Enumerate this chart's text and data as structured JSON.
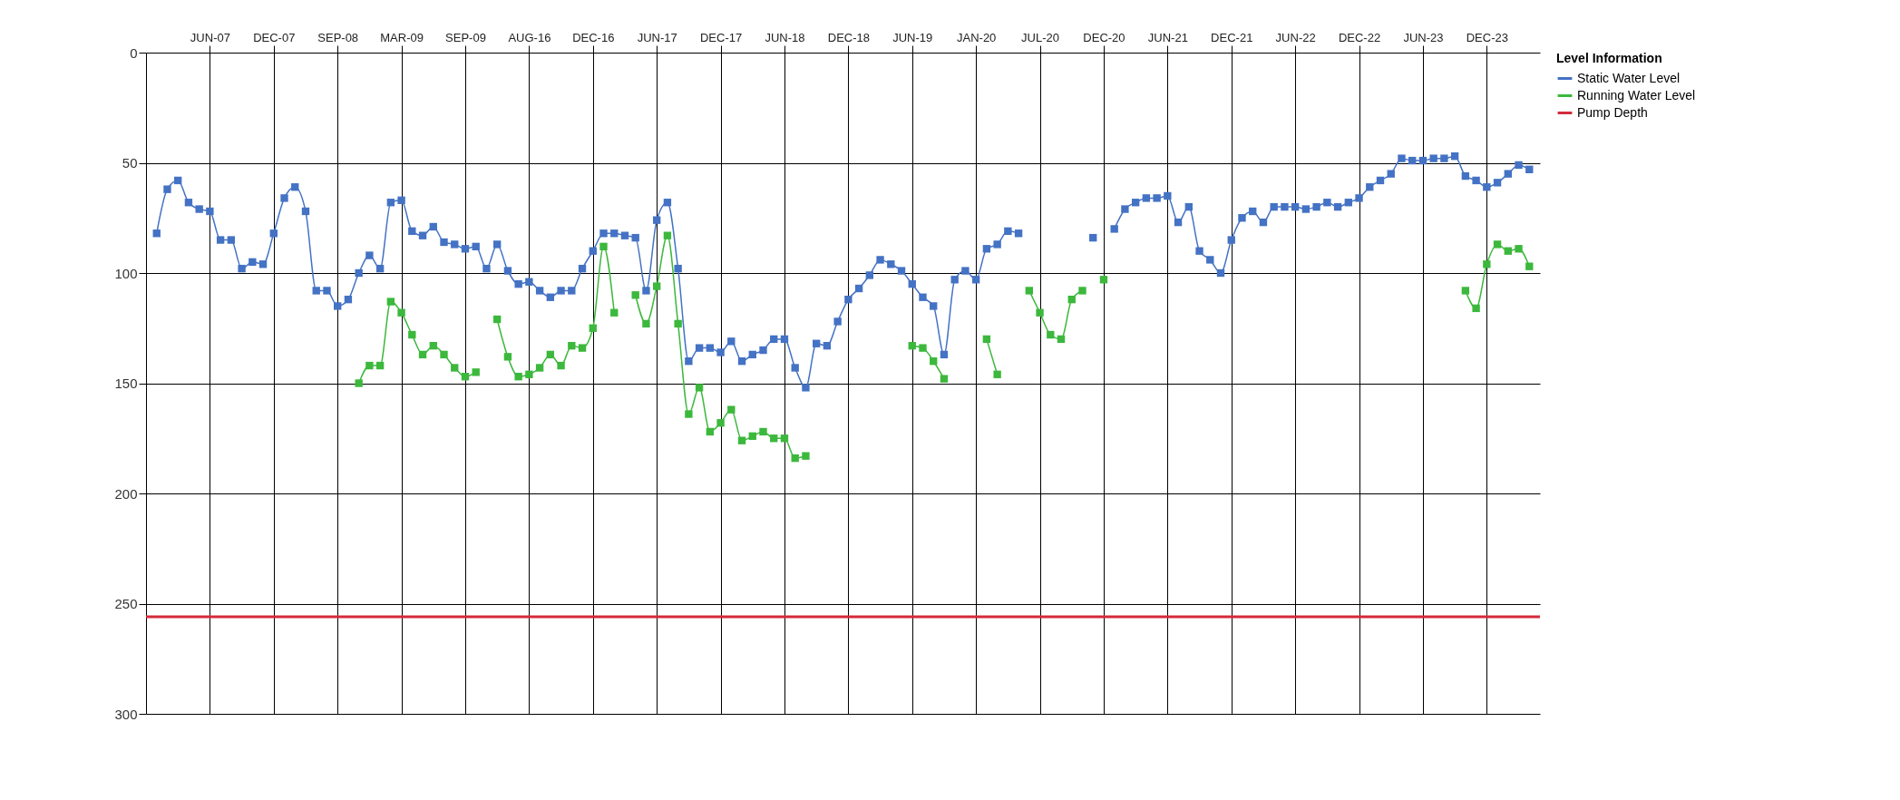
{
  "chart_data": {
    "type": "line",
    "legend_title": "Level Information",
    "categories": [
      null,
      null,
      null,
      null,
      null,
      "JUN-07",
      null,
      null,
      null,
      null,
      null,
      "DEC-07",
      null,
      null,
      null,
      null,
      null,
      "SEP-08",
      null,
      null,
      null,
      null,
      null,
      "MAR-09",
      null,
      null,
      null,
      null,
      null,
      "SEP-09",
      null,
      null,
      null,
      null,
      null,
      "AUG-16",
      null,
      null,
      null,
      null,
      null,
      "DEC-16",
      null,
      null,
      null,
      null,
      null,
      "JUN-17",
      null,
      null,
      null,
      null,
      null,
      "DEC-17",
      null,
      null,
      null,
      null,
      null,
      "JUN-18",
      null,
      null,
      null,
      null,
      null,
      "DEC-18",
      null,
      null,
      null,
      null,
      null,
      "JUN-19",
      null,
      null,
      null,
      null,
      null,
      "JAN-20",
      null,
      null,
      null,
      null,
      null,
      "JUL-20",
      null,
      null,
      null,
      null,
      null,
      "DEC-20",
      null,
      null,
      null,
      null,
      null,
      "JUN-21",
      null,
      null,
      null,
      null,
      null,
      "DEC-21",
      null,
      null,
      null,
      null,
      null,
      "JUN-22",
      null,
      null,
      null,
      null,
      null,
      "DEC-22",
      null,
      null,
      null,
      null,
      null,
      "JUN-23",
      null,
      null,
      null,
      null,
      null,
      "DEC-23",
      null,
      null,
      null,
      null
    ],
    "series": [
      {
        "name": "Static Water Level",
        "color": "#4472c4",
        "values": [
          82,
          62,
          58,
          68,
          71,
          72,
          85,
          85,
          98,
          95,
          96,
          82,
          66,
          61,
          72,
          108,
          108,
          115,
          112,
          100,
          92,
          98,
          68,
          67,
          81,
          83,
          79,
          86,
          87,
          89,
          88,
          98,
          87,
          99,
          105,
          104,
          108,
          111,
          108,
          108,
          98,
          90,
          82,
          82,
          83,
          84,
          108,
          76,
          68,
          98,
          140,
          134,
          134,
          136,
          131,
          140,
          137,
          135,
          130,
          130,
          143,
          152,
          132,
          133,
          122,
          112,
          107,
          101,
          94,
          96,
          99,
          105,
          111,
          115,
          137,
          103,
          99,
          103,
          89,
          87,
          81,
          82,
          null,
          null,
          null,
          null,
          null,
          null,
          84,
          null,
          80,
          71,
          68,
          66,
          66,
          65,
          77,
          70,
          90,
          94,
          100,
          85,
          75,
          72,
          77,
          70,
          70,
          70,
          71,
          70,
          68,
          70,
          68,
          66,
          61,
          58,
          55,
          48,
          49,
          49,
          48,
          48,
          47,
          56,
          58,
          61,
          59,
          55,
          51,
          53
        ]
      },
      {
        "name": "Running Water Level",
        "color": "#3cb83c",
        "values": [
          null,
          null,
          null,
          null,
          null,
          null,
          null,
          null,
          null,
          null,
          null,
          null,
          null,
          null,
          null,
          null,
          null,
          null,
          null,
          150,
          142,
          142,
          113,
          118,
          128,
          137,
          133,
          137,
          143,
          147,
          145,
          null,
          121,
          138,
          147,
          146,
          143,
          137,
          142,
          133,
          134,
          125,
          88,
          118,
          null,
          110,
          123,
          106,
          83,
          123,
          164,
          152,
          172,
          168,
          162,
          176,
          174,
          172,
          175,
          175,
          184,
          183,
          null,
          null,
          null,
          null,
          null,
          null,
          null,
          null,
          null,
          133,
          134,
          140,
          148,
          null,
          null,
          null,
          130,
          146,
          null,
          null,
          108,
          118,
          128,
          130,
          112,
          108,
          null,
          103,
          null,
          null,
          null,
          null,
          null,
          null,
          null,
          null,
          null,
          null,
          null,
          null,
          null,
          null,
          null,
          null,
          null,
          null,
          null,
          null,
          null,
          null,
          null,
          null,
          null,
          null,
          null,
          null,
          null,
          null,
          null,
          null,
          null,
          108,
          116,
          96,
          87,
          90,
          89,
          97
        ]
      }
    ],
    "ref_lines": [
      {
        "axis": "y",
        "value": 256,
        "label": "Pump Depth",
        "color": "#d42a3a"
      }
    ],
    "ylim": [
      300,
      0
    ],
    "yticks": [
      0,
      50,
      100,
      150,
      200,
      250,
      300
    ],
    "grid": true,
    "legend": "top right",
    "marker": "square",
    "line_style": "solid"
  }
}
